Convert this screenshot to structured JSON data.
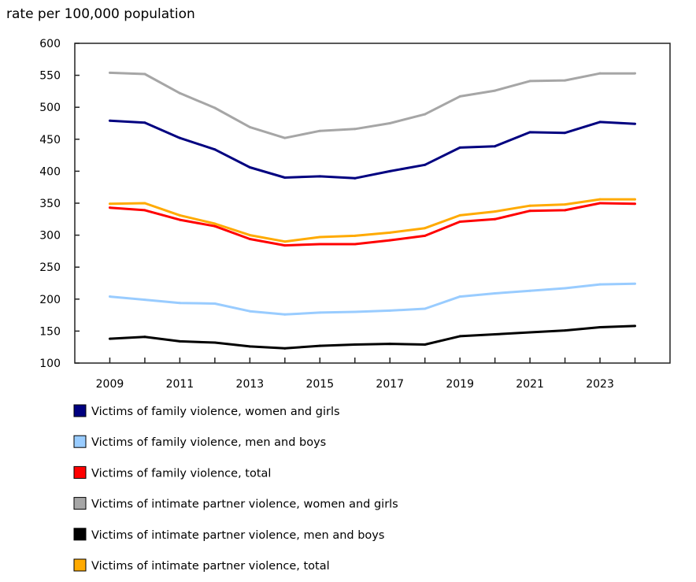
{
  "chart_data": {
    "type": "line",
    "title": "",
    "ylabel": "rate per 100,000 population",
    "xlabel": "",
    "ylim": [
      100,
      600
    ],
    "xlim": [
      2008,
      2025
    ],
    "yticks": [
      100,
      150,
      200,
      250,
      300,
      350,
      400,
      450,
      500,
      550,
      600
    ],
    "xtick_labels": [
      "2009",
      "2011",
      "2013",
      "2015",
      "2017",
      "2019",
      "2021",
      "2023"
    ],
    "grid": false,
    "legend_position": "bottom",
    "x": [
      2009,
      2010,
      2011,
      2012,
      2013,
      2014,
      2015,
      2016,
      2017,
      2018,
      2019,
      2020,
      2021,
      2022,
      2023,
      2024
    ],
    "series": [
      {
        "name": "Victims of family violence, women and girls",
        "color": "#000080",
        "values": [
          479,
          476,
          452,
          434,
          406,
          390,
          392,
          389,
          400,
          410,
          437,
          439,
          461,
          460,
          477,
          474
        ]
      },
      {
        "name": "Victims of family violence, men and boys",
        "color": "#99ccff",
        "values": [
          204,
          199,
          194,
          193,
          181,
          176,
          179,
          180,
          182,
          185,
          204,
          209,
          213,
          217,
          223,
          224
        ]
      },
      {
        "name": "Victims of family violence, total",
        "color": "#ff0000",
        "values": [
          343,
          339,
          324,
          314,
          294,
          284,
          286,
          286,
          292,
          299,
          321,
          325,
          338,
          339,
          350,
          349
        ]
      },
      {
        "name": "Victims of intimate partner violence, women and girls",
        "color": "#a6a6a6",
        "values": [
          554,
          552,
          522,
          499,
          469,
          452,
          463,
          466,
          475,
          489,
          517,
          526,
          541,
          542,
          553,
          553
        ]
      },
      {
        "name": "Victims of intimate partner violence, men and boys",
        "color": "#000000",
        "values": [
          138,
          141,
          134,
          132,
          126,
          123,
          127,
          129,
          130,
          129,
          142,
          145,
          148,
          151,
          156,
          158
        ]
      },
      {
        "name": "Victims of intimate partner violence, total",
        "color": "#ffaa00",
        "values": [
          349,
          350,
          331,
          318,
          300,
          290,
          297,
          299,
          304,
          311,
          331,
          337,
          346,
          348,
          356,
          356
        ]
      }
    ]
  }
}
